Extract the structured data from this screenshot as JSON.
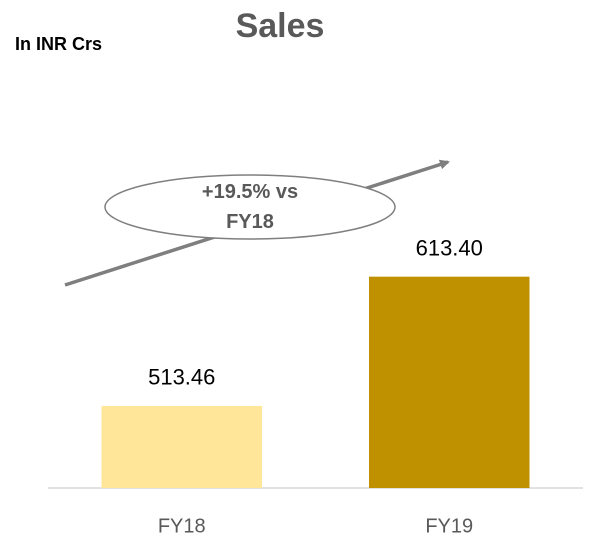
{
  "chart_data": {
    "type": "bar",
    "title": "Sales",
    "subtitle": "In INR Crs",
    "categories": [
      "FY18",
      "FY19"
    ],
    "values": [
      513.46,
      613.4
    ],
    "value_labels": [
      "513.46",
      "613.40"
    ],
    "colors": [
      "#ffe699",
      "#bf9000"
    ],
    "ylim": [
      450,
      750
    ],
    "annotation": "+19.5% vs FY18"
  }
}
